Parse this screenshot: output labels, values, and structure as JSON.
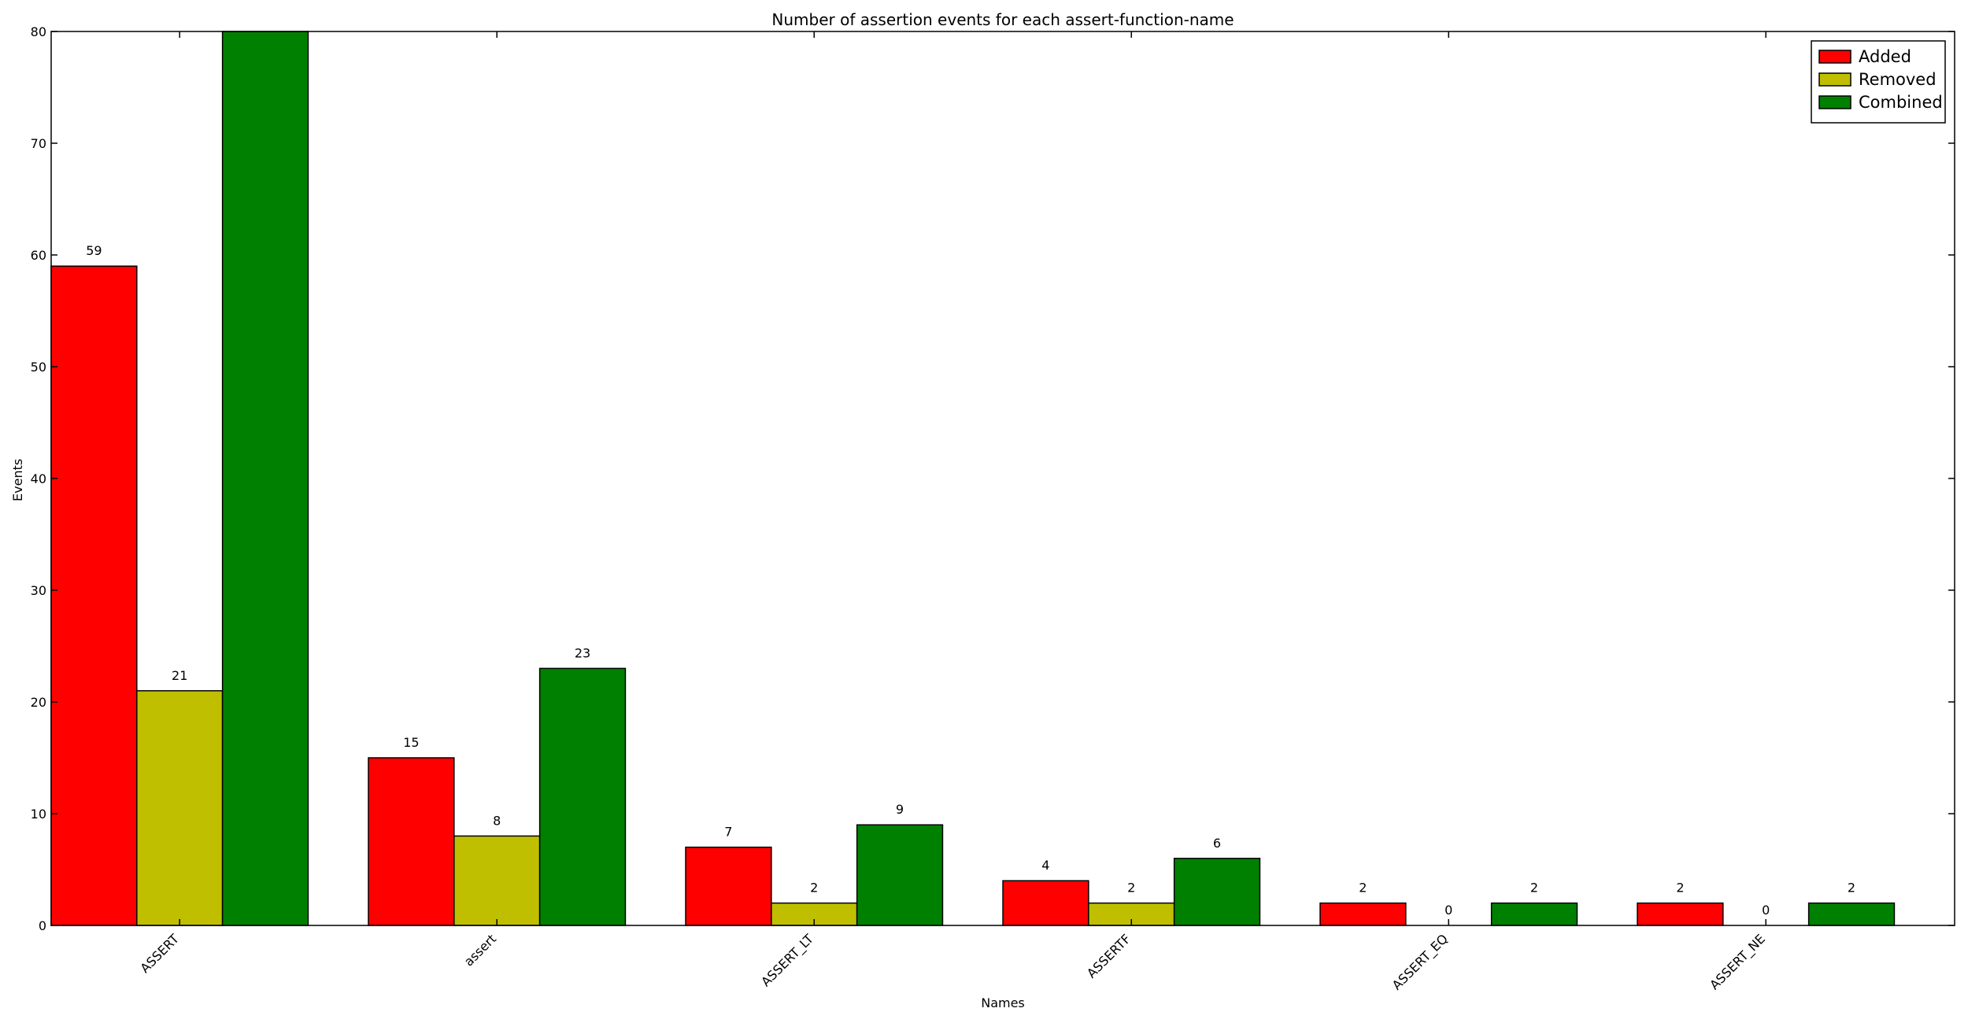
{
  "chart_data": {
    "type": "bar",
    "title": "Number of assertion events for each assert-function-name",
    "xlabel": "Names",
    "ylabel": "Events",
    "ylim": [
      0,
      80
    ],
    "yticks": [
      0,
      10,
      20,
      30,
      40,
      50,
      60,
      70,
      80
    ],
    "categories": [
      "ASSERT",
      "assert",
      "ASSERT_LT",
      "ASSERTF",
      "ASSERT_EQ",
      "ASSERT_NE"
    ],
    "series": [
      {
        "name": "Added",
        "color": "#ff0000",
        "values": [
          59,
          15,
          7,
          4,
          2,
          2
        ],
        "labels": [
          "59",
          "15",
          "7",
          "4",
          "2",
          "2"
        ]
      },
      {
        "name": "Removed",
        "color": "#bfbf00",
        "values": [
          21,
          8,
          2,
          2,
          0,
          0
        ],
        "labels": [
          "21",
          "8",
          "2",
          "2",
          "0",
          "0"
        ]
      },
      {
        "name": "Combined",
        "color": "#008000",
        "values": [
          80,
          23,
          9,
          6,
          2,
          2
        ],
        "labels": [
          "",
          "23",
          "9",
          "6",
          "2",
          "2"
        ]
      }
    ],
    "legend": {
      "position": "top-right",
      "entries": [
        "Added",
        "Removed",
        "Combined"
      ]
    },
    "grid": false
  }
}
